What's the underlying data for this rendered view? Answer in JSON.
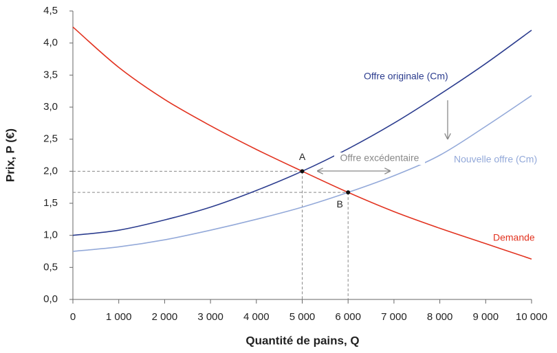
{
  "chart_data": {
    "type": "line",
    "x_label": "Quantité de pains, Q",
    "y_label": "Prix, P (€)",
    "x": [
      0,
      1000,
      2000,
      3000,
      4000,
      5000,
      6000,
      7000,
      8000,
      9000,
      10000
    ],
    "series": [
      {
        "name": "Demande",
        "color": "#e2321f",
        "values": [
          4.25,
          3.62,
          3.12,
          2.71,
          2.34,
          2.0,
          1.67,
          1.37,
          1.11,
          0.87,
          0.63
        ]
      },
      {
        "name": "Offre originale (Cm)",
        "color": "#2b3c8e",
        "values": [
          1.0,
          1.08,
          1.24,
          1.44,
          1.7,
          2.0,
          2.35,
          2.75,
          3.2,
          3.68,
          4.2
        ]
      },
      {
        "name": "Nouvelle offre (Cm)",
        "color": "#93a9d9",
        "values": [
          0.75,
          0.82,
          0.93,
          1.08,
          1.25,
          1.44,
          1.67,
          1.93,
          2.25,
          2.7,
          3.18
        ]
      }
    ],
    "points": [
      {
        "label": "A",
        "x": 5000,
        "y": 2.0
      },
      {
        "label": "B",
        "x": 6000,
        "y": 1.67
      }
    ],
    "annotations": [
      "Offre excédentaire"
    ],
    "xlim": [
      0,
      10000
    ],
    "xticks": [
      0,
      {
        "value": 1000,
        "label": "1 000"
      },
      {
        "value": 2000,
        "label": "2 000"
      },
      {
        "value": 3000,
        "label": "3 000"
      },
      {
        "value": 4000,
        "label": "4 000"
      },
      {
        "value": 5000,
        "label": "5 000"
      },
      {
        "value": 6000,
        "label": "6 000"
      },
      {
        "value": 7000,
        "label": "7 000"
      },
      {
        "value": 8000,
        "label": "8 000"
      },
      {
        "value": 9000,
        "label": "9 000"
      },
      {
        "value": 10000,
        "label": "10 000"
      }
    ],
    "ylim": [
      0,
      4.5
    ],
    "yticks": [
      {
        "value": 0,
        "label": "0,0"
      },
      {
        "value": 0.5,
        "label": "0,5"
      },
      {
        "value": 1.0,
        "label": "1,0"
      },
      {
        "value": 1.5,
        "label": "1,5"
      },
      {
        "value": 2.0,
        "label": "2,0"
      },
      {
        "value": 2.5,
        "label": "2,5"
      },
      {
        "value": 3.0,
        "label": "3,0"
      },
      {
        "value": 3.5,
        "label": "3,5"
      },
      {
        "value": 4.0,
        "label": "4,0"
      },
      {
        "value": 4.5,
        "label": "4,5"
      }
    ],
    "grid": false
  }
}
